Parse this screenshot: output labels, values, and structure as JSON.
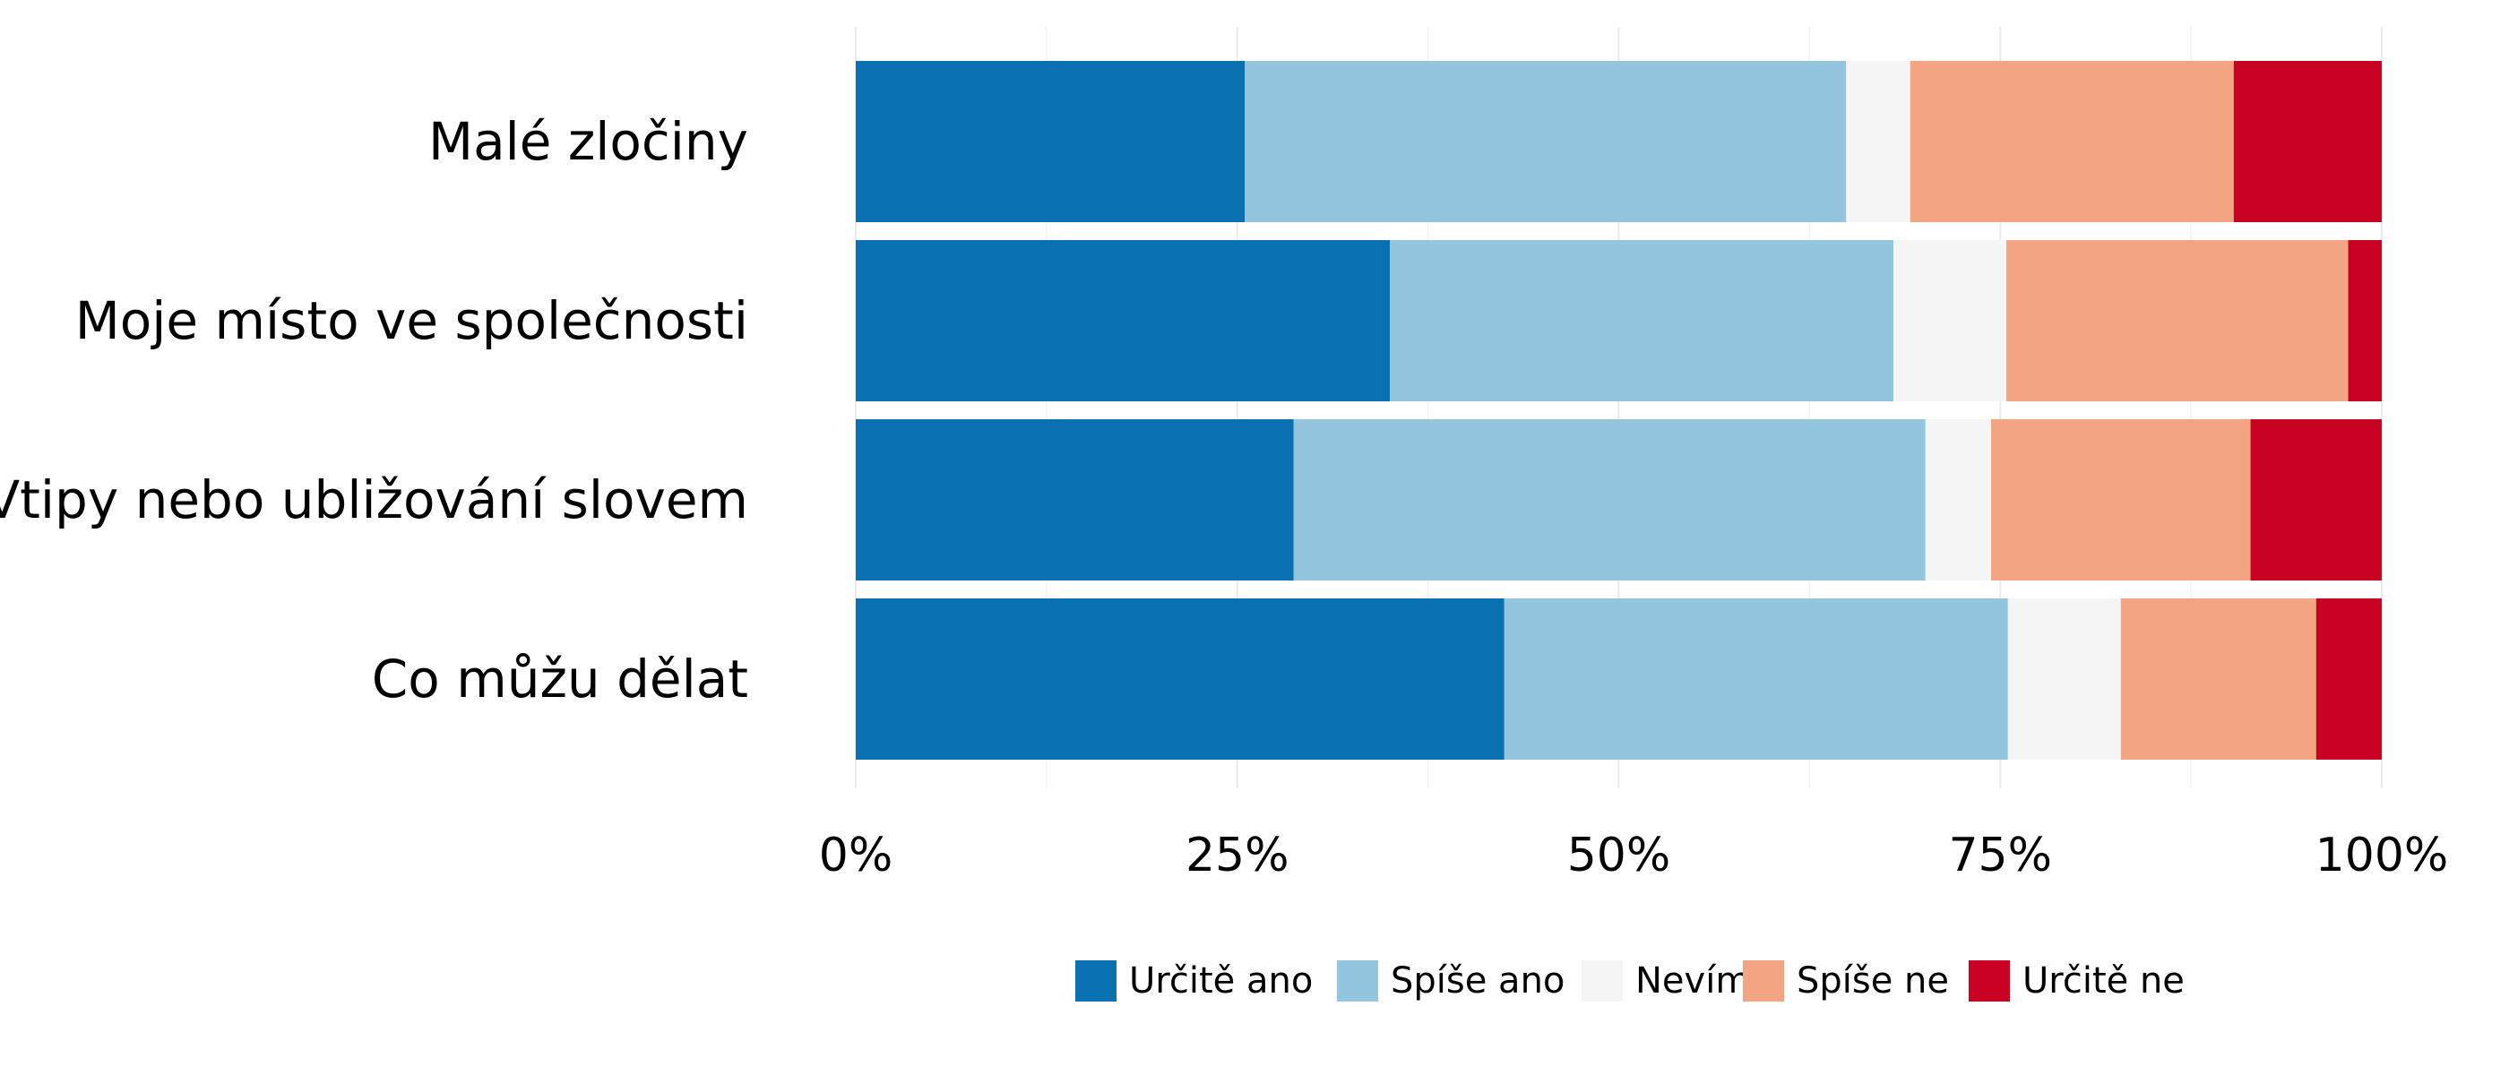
{
  "chart_data": {
    "type": "bar",
    "orientation": "horizontal",
    "stacked": true,
    "normalized": true,
    "categories": [
      "Malé zločiny",
      "Moje místo ve společnosti",
      "Vtipy nebo ubližování slovem",
      "Co můžu dělat"
    ],
    "series": [
      {
        "name": "Určitě ano",
        "color": "#0971B0",
        "values": [
          25.5,
          35.0,
          28.7,
          42.5
        ]
      },
      {
        "name": "Spíše ano",
        "color": "#94C5DE",
        "values": [
          39.4,
          33.0,
          41.4,
          33.0
        ]
      },
      {
        "name": "Nevím",
        "color": "#F5F5F5",
        "values": [
          4.2,
          7.4,
          4.3,
          7.4
        ]
      },
      {
        "name": "Spíše ne",
        "color": "#F3A583",
        "values": [
          21.2,
          22.4,
          17.0,
          12.8
        ]
      },
      {
        "name": "Určitě ne",
        "color": "#C90123",
        "values": [
          9.7,
          2.2,
          8.6,
          4.3
        ]
      }
    ],
    "xlim": [
      0,
      100
    ],
    "x_ticks": [
      0,
      25,
      50,
      75,
      100
    ],
    "x_tick_labels": [
      "0%",
      "25%",
      "50%",
      "75%",
      "100%"
    ],
    "xlabel": "",
    "ylabel": "",
    "title": "",
    "grid": "vertical",
    "legend_position": "bottom"
  }
}
